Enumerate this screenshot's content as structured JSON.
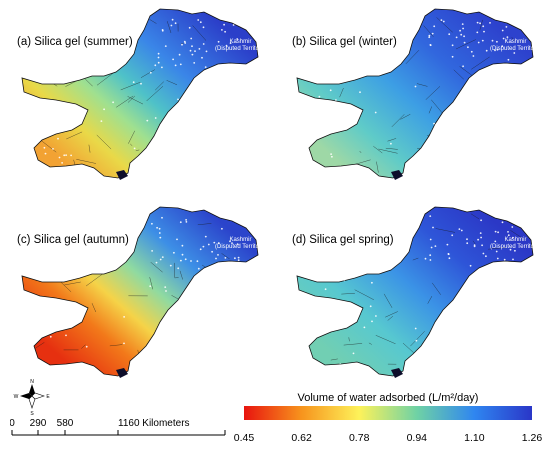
{
  "panels": [
    {
      "id": "a",
      "title": "(a) Silica gel (summer)",
      "season": "summer"
    },
    {
      "id": "b",
      "title": "(b) Silica gel (winter)",
      "season": "winter"
    },
    {
      "id": "c",
      "title": "(c) Silica gel (autumn)",
      "season": "autumn"
    },
    {
      "id": "d",
      "title": "(d) Silica gel spring)",
      "season": "spring"
    }
  ],
  "kashmir_label": [
    "Kashmir",
    "(Disputed Territory)"
  ],
  "legend": {
    "title": "Volume of water adsorbed (L/m²/day)",
    "ticks": [
      "0.45",
      "0.62",
      "0.78",
      "0.94",
      "1.10",
      "1.26"
    ],
    "colors": [
      "#e8140f",
      "#f7941d",
      "#fdf25a",
      "#6fd2a5",
      "#2f86f0",
      "#2a36c8"
    ]
  },
  "scale_bar": {
    "ticks": [
      "0",
      "290",
      "580",
      "1160 Kilometers"
    ]
  },
  "compass": {
    "n": "N",
    "s": "S",
    "e": "E",
    "w": "W"
  }
}
